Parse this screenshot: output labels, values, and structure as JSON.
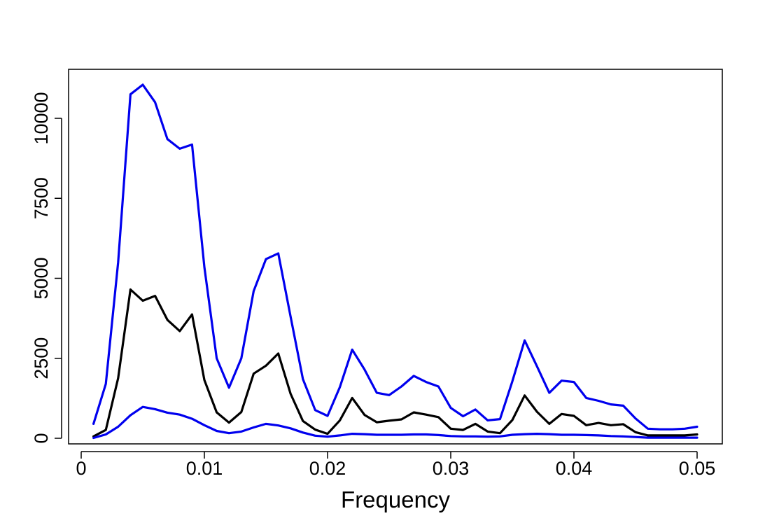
{
  "chart_data": {
    "type": "line",
    "title": "",
    "xlabel": "Frequency",
    "ylabel": "",
    "xlim": [
      0,
      0.05
    ],
    "ylim": [
      0,
      11000
    ],
    "xticks": [
      0,
      0.01,
      0.02,
      0.03,
      0.04,
      0.05
    ],
    "xtick_labels": [
      "0",
      "0.01",
      "0.02",
      "0.03",
      "0.04",
      "0.05"
    ],
    "yticks": [
      0,
      2500,
      5000,
      7500,
      10000
    ],
    "ytick_labels": [
      "0",
      "2500",
      "5000",
      "7500",
      "10000"
    ],
    "grid": false,
    "legend": "none",
    "x": [
      0.001,
      0.002,
      0.003,
      0.004,
      0.005,
      0.006,
      0.007,
      0.008,
      0.009,
      0.01,
      0.011,
      0.012,
      0.013,
      0.014,
      0.015,
      0.016,
      0.017,
      0.018,
      0.019,
      0.02,
      0.021,
      0.022,
      0.023,
      0.024,
      0.025,
      0.026,
      0.027,
      0.028,
      0.029,
      0.03,
      0.031,
      0.032,
      0.033,
      0.034,
      0.035,
      0.036,
      0.037,
      0.038,
      0.039,
      0.04,
      0.041,
      0.042,
      0.043,
      0.044,
      0.045,
      0.046,
      0.047,
      0.048,
      0.049,
      0.05
    ],
    "series": [
      {
        "color": "#0000ee",
        "values": [
          450,
          1700,
          5500,
          10750,
          11050,
          10500,
          9350,
          9050,
          9180,
          5350,
          2500,
          1580,
          2500,
          4600,
          5600,
          5780,
          3800,
          1850,
          880,
          700,
          1600,
          2770,
          2150,
          1420,
          1350,
          1620,
          1950,
          1760,
          1620,
          950,
          690,
          900,
          560,
          600,
          1780,
          3060,
          2250,
          1420,
          1800,
          1760,
          1260,
          1170,
          1060,
          1020,
          620,
          300,
          280,
          280,
          300,
          360
        ]
      },
      {
        "color": "#000000",
        "values": [
          60,
          260,
          1880,
          4650,
          4300,
          4450,
          3700,
          3350,
          3870,
          1820,
          810,
          490,
          820,
          2020,
          2270,
          2650,
          1390,
          540,
          270,
          140,
          560,
          1260,
          730,
          500,
          550,
          590,
          810,
          740,
          660,
          300,
          260,
          450,
          210,
          160,
          570,
          1340,
          830,
          450,
          760,
          700,
          410,
          480,
          410,
          440,
          190,
          90,
          90,
          90,
          90,
          120
        ]
      },
      {
        "color": "#0000ee",
        "values": [
          10,
          120,
          360,
          720,
          980,
          910,
          800,
          740,
          610,
          410,
          230,
          160,
          210,
          340,
          450,
          400,
          310,
          180,
          80,
          50,
          90,
          140,
          130,
          110,
          110,
          110,
          120,
          120,
          100,
          70,
          60,
          60,
          50,
          60,
          110,
          130,
          140,
          130,
          110,
          110,
          100,
          90,
          70,
          60,
          40,
          20,
          20,
          20,
          20,
          20
        ]
      }
    ]
  }
}
